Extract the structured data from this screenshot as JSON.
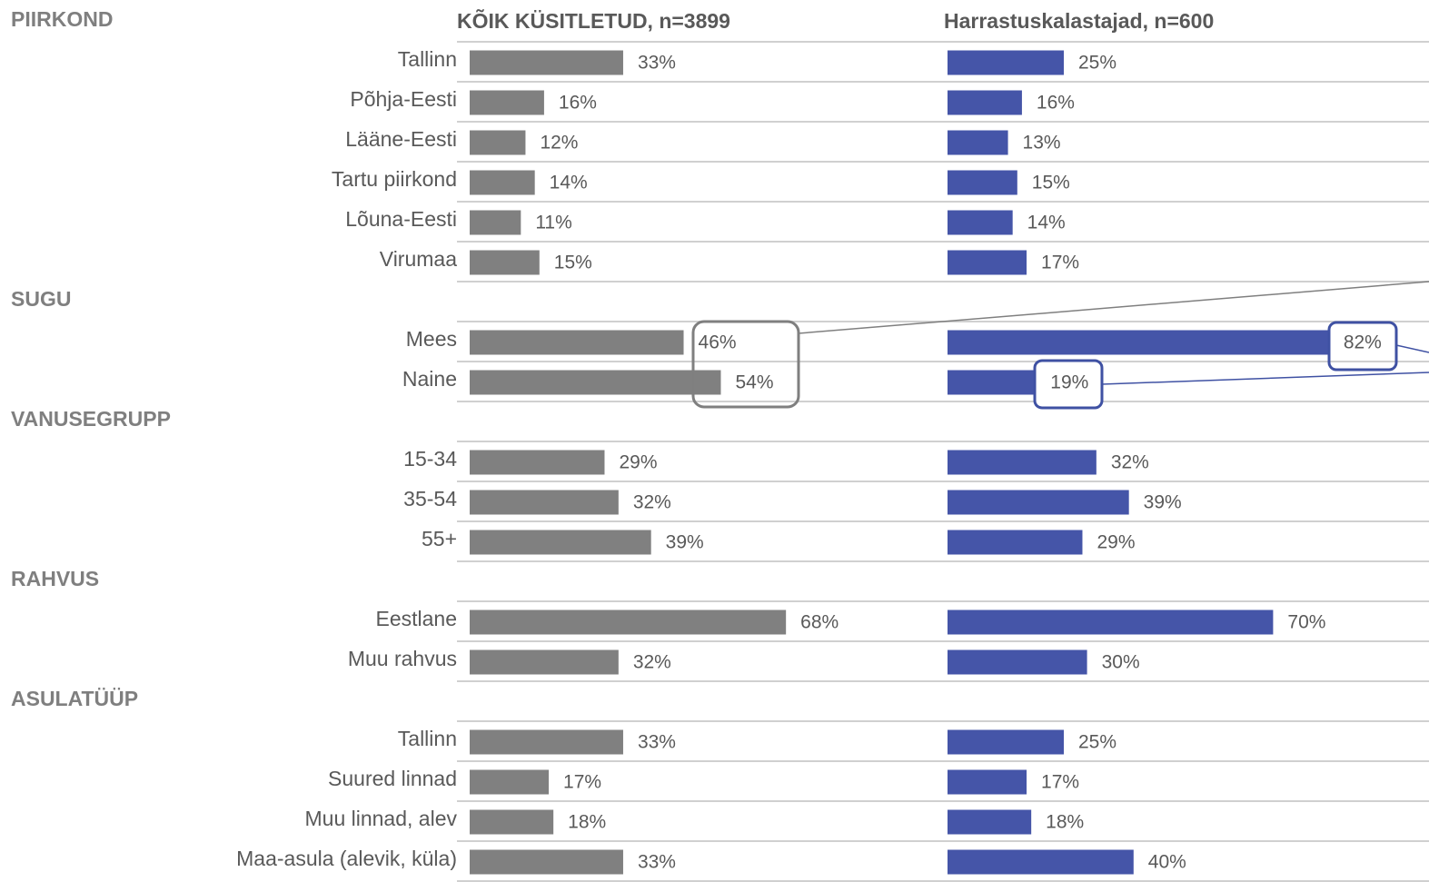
{
  "chart_data": {
    "type": "bar",
    "orientation": "horizontal",
    "groups": [
      {
        "label": "PIIRKOND",
        "categories": [
          "Tallinn",
          "Põhja-Eesti",
          "Lääne-Eesti",
          "Tartu piirkond",
          "Lõuna-Eesti",
          "Virumaa"
        ]
      },
      {
        "label": "SUGU",
        "categories": [
          "Mees",
          "Naine"
        ]
      },
      {
        "label": "VANUSEGRUPP",
        "categories": [
          "15-34",
          "35-54",
          "55+"
        ]
      },
      {
        "label": "RAHVUS",
        "categories": [
          "Eestlane",
          "Muu rahvus"
        ]
      },
      {
        "label": "ASULATÜÜP",
        "categories": [
          "Tallinn",
          "Suured linnad",
          "Muu linnad, alev",
          "Maa-asula (alevik, küla)"
        ]
      }
    ],
    "series": [
      {
        "name": "KÕIK KÜSITLETUD, n=3899",
        "color": "#808080",
        "values": [
          33,
          16,
          12,
          14,
          11,
          15,
          46,
          54,
          29,
          32,
          39,
          68,
          32,
          33,
          17,
          18,
          33
        ],
        "value_labels": [
          "33%",
          "16%",
          "12%",
          "14%",
          "11%",
          "15%",
          "46%",
          "54%",
          "29%",
          "32%",
          "39%",
          "68%",
          "32%",
          "33%",
          "17%",
          "18%",
          "33%"
        ]
      },
      {
        "name": "Harrastuskalastajad, n=600",
        "color": "#4555a8",
        "values": [
          25,
          16,
          13,
          15,
          14,
          17,
          82,
          19,
          32,
          39,
          29,
          70,
          30,
          25,
          17,
          18,
          40
        ],
        "value_labels": [
          "25%",
          "16%",
          "13%",
          "15%",
          "14%",
          "17%",
          "82%",
          "19%",
          "32%",
          "39%",
          "29%",
          "70%",
          "30%",
          "25%",
          "17%",
          "18%",
          "40%"
        ]
      }
    ]
  }
}
